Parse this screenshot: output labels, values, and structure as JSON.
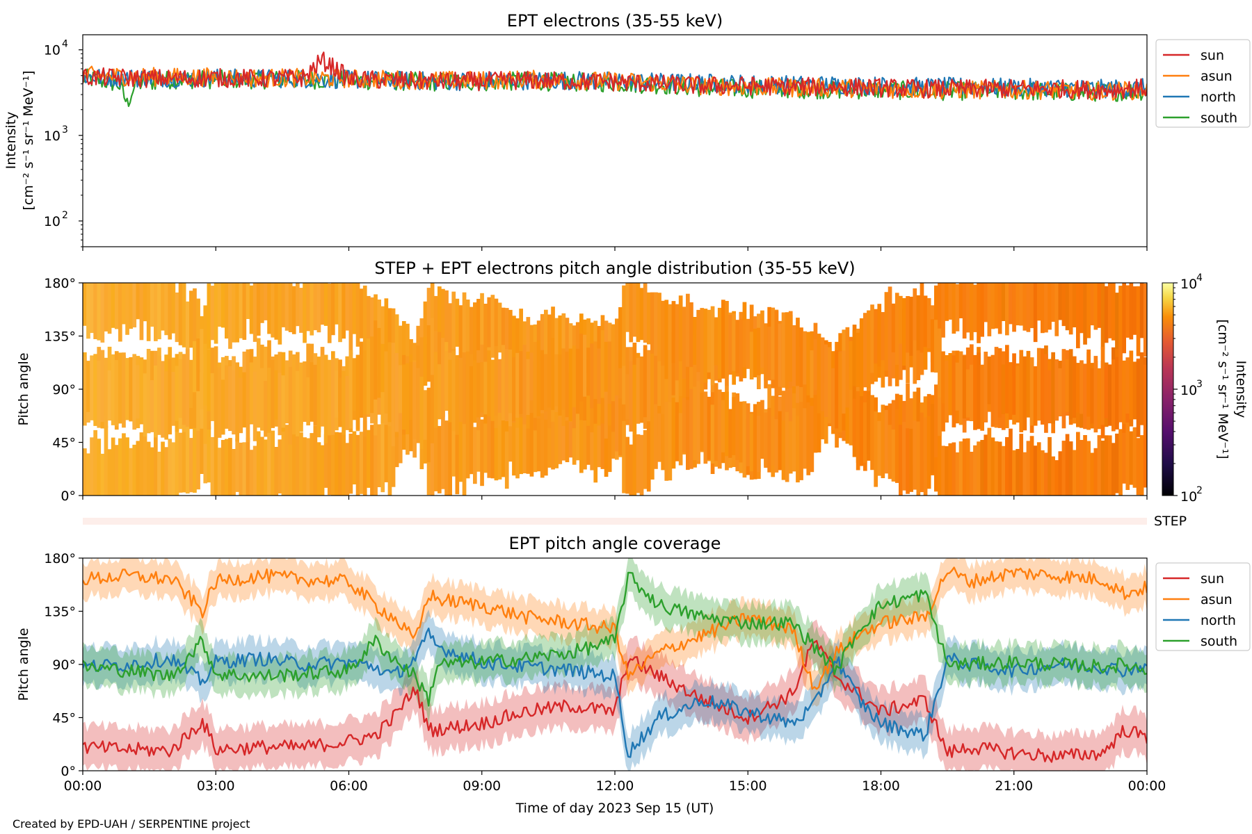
{
  "credit": "Created by EPD-UAH / SERPENTINE project",
  "xaxis": {
    "label": "Time of day 2023 Sep 15 (UT)",
    "ticks": [
      "00:00",
      "03:00",
      "06:00",
      "09:00",
      "12:00",
      "15:00",
      "18:00",
      "21:00",
      "00:00"
    ],
    "range_hours": [
      0,
      24
    ]
  },
  "chart_data": [
    {
      "type": "line",
      "title": "EPT electrons (35-55 keV)",
      "ylabel_line1": "Intensity",
      "ylabel_line2": "[cm⁻² s⁻¹ sr⁻¹ MeV⁻¹]",
      "yscale": "log",
      "ylim": [
        50,
        15000
      ],
      "ytick_values": [
        100,
        1000,
        10000
      ],
      "ytick_labels": [
        "10",
        "10",
        "10"
      ],
      "ytick_exponents": [
        "2",
        "3",
        "4"
      ],
      "legend_position": "outside-right",
      "series": [
        {
          "name": "sun",
          "color": "#d62728",
          "x": [
            0,
            1,
            2,
            3,
            4,
            5,
            5.4,
            6,
            7,
            8,
            9,
            10,
            11,
            12,
            13,
            14,
            15,
            16,
            17,
            18,
            19,
            20,
            21,
            22,
            23,
            24
          ],
          "values": [
            4800,
            4700,
            4600,
            4700,
            4600,
            4700,
            7500,
            4500,
            4400,
            4300,
            4300,
            4400,
            4300,
            4200,
            4000,
            3800,
            3800,
            3700,
            3700,
            3600,
            3500,
            3500,
            3500,
            3500,
            3400,
            3600
          ]
        },
        {
          "name": "asun",
          "color": "#ff7f0e",
          "x": [
            0,
            1,
            2,
            3,
            4,
            5,
            6,
            7,
            8,
            9,
            10,
            11,
            12,
            13,
            14,
            15,
            16,
            17,
            18,
            19,
            20,
            21,
            22,
            23,
            24
          ],
          "values": [
            5000,
            4900,
            4800,
            4800,
            4700,
            4700,
            4600,
            4500,
            4400,
            4400,
            4500,
            4400,
            4300,
            4100,
            3800,
            3700,
            3600,
            3600,
            3500,
            3400,
            3400,
            3400,
            3400,
            3300,
            3400
          ]
        },
        {
          "name": "north",
          "color": "#1f77b4",
          "x": [
            0,
            1,
            2,
            3,
            4,
            5,
            6,
            7,
            8,
            9,
            10,
            11,
            12,
            13,
            14,
            15,
            16,
            17,
            18,
            19,
            20,
            21,
            22,
            23,
            24
          ],
          "values": [
            4900,
            4700,
            4700,
            4700,
            4600,
            4600,
            4500,
            4400,
            4300,
            4300,
            4400,
            4400,
            4300,
            4200,
            4100,
            4000,
            3900,
            3900,
            3800,
            3700,
            3700,
            3600,
            3600,
            3500,
            3600
          ]
        },
        {
          "name": "south",
          "color": "#2ca02c",
          "x": [
            0,
            0.8,
            1,
            1.2,
            2,
            3,
            4,
            5,
            6,
            7,
            8,
            9,
            10,
            11,
            12,
            13,
            14,
            15,
            16,
            17,
            18,
            19,
            20,
            21,
            22,
            23,
            24
          ],
          "values": [
            4700,
            4000,
            2300,
            4000,
            4500,
            4500,
            4500,
            4500,
            4400,
            4300,
            4200,
            4200,
            4300,
            4200,
            4100,
            3900,
            3600,
            3500,
            3500,
            3400,
            3400,
            3300,
            3300,
            3300,
            3200,
            3200,
            3300
          ]
        }
      ]
    },
    {
      "type": "heatmap",
      "title": "STEP + EPT electrons pitch angle distribution (35-55 keV)",
      "ylabel": "Pitch angle",
      "ylim": [
        0,
        180
      ],
      "ytick_labels": [
        "0°",
        "45°",
        "90°",
        "135°",
        "180°"
      ],
      "ytick_values": [
        0,
        45,
        90,
        135,
        180
      ],
      "colorbar": {
        "label": "Intensity",
        "unit": "[cm⁻² s⁻¹ sr⁻¹ MeV⁻¹]",
        "scale": "log",
        "range": [
          100,
          10000
        ],
        "tick_labels": [
          "10",
          "10",
          "10"
        ],
        "tick_exponents": [
          "2",
          "3",
          "4"
        ],
        "colormap": "inferno"
      },
      "band_note": "intensity fills pitch-angle bands traced by the four telescopes; values ~4000-6000 (00-09 h), ~3000-4000 (09-24 h)"
    },
    {
      "type": "line",
      "title": "EPT pitch angle coverage",
      "ylabel": "Pitch angle",
      "ylim": [
        0,
        180
      ],
      "ytick_labels": [
        "0°",
        "45°",
        "90°",
        "135°",
        "180°"
      ],
      "ytick_values": [
        0,
        45,
        90,
        135,
        180
      ],
      "strip_label": "STEP",
      "legend_position": "outside-right",
      "series": [
        {
          "name": "sun",
          "color": "#d62728",
          "x": [
            0,
            1,
            2,
            2.7,
            3,
            4,
            5,
            6,
            6.6,
            7,
            7.5,
            7.8,
            8,
            9,
            10,
            11,
            12,
            12.3,
            13,
            14,
            15,
            16,
            16.5,
            17,
            17.5,
            18,
            19,
            19.5,
            20,
            21,
            22,
            23,
            23.5,
            24
          ],
          "values": [
            20,
            18,
            17,
            42,
            18,
            20,
            20,
            25,
            30,
            45,
            70,
            35,
            35,
            40,
            50,
            55,
            50,
            95,
            80,
            60,
            45,
            65,
            110,
            80,
            65,
            50,
            60,
            15,
            20,
            15,
            12,
            15,
            35,
            28
          ]
        },
        {
          "name": "asun",
          "color": "#ff7f0e",
          "x": [
            0,
            1,
            2,
            2.7,
            3,
            4,
            5,
            6,
            6.6,
            7,
            7.5,
            7.8,
            8,
            9,
            10,
            11,
            12,
            12.3,
            13,
            14,
            15,
            16,
            16.5,
            17,
            17.5,
            18,
            19,
            19.5,
            20,
            21,
            22,
            23,
            23.5,
            24
          ],
          "values": [
            162,
            165,
            162,
            135,
            160,
            165,
            162,
            160,
            140,
            130,
            110,
            150,
            145,
            140,
            130,
            125,
            120,
            80,
            100,
            115,
            130,
            120,
            70,
            100,
            115,
            125,
            130,
            170,
            160,
            168,
            165,
            162,
            150,
            155
          ]
        },
        {
          "name": "north",
          "color": "#1f77b4",
          "x": [
            0,
            1,
            2,
            2.7,
            3,
            4,
            5,
            6,
            6.6,
            7,
            7.5,
            7.8,
            8,
            9,
            10,
            11,
            12,
            12.3,
            13,
            14,
            15,
            16,
            16.5,
            17,
            17.5,
            18,
            19,
            19.5,
            20,
            21,
            22,
            23,
            23.5,
            24
          ],
          "values": [
            88,
            90,
            95,
            75,
            92,
            95,
            90,
            92,
            88,
            80,
            95,
            115,
            105,
            92,
            88,
            85,
            80,
            15,
            45,
            60,
            50,
            40,
            55,
            95,
            60,
            40,
            30,
            95,
            90,
            85,
            90,
            88,
            85,
            90
          ]
        },
        {
          "name": "south",
          "color": "#2ca02c",
          "x": [
            0,
            1,
            2,
            2.7,
            3,
            4,
            5,
            6,
            6.6,
            7,
            7.5,
            7.8,
            8,
            9,
            10,
            11,
            12,
            12.3,
            13,
            14,
            15,
            16,
            16.5,
            17,
            17.5,
            18,
            19,
            19.5,
            20,
            21,
            22,
            23,
            23.5,
            24
          ],
          "values": [
            88,
            85,
            80,
            110,
            82,
            80,
            82,
            85,
            110,
            95,
            80,
            60,
            90,
            92,
            95,
            100,
            110,
            165,
            140,
            130,
            125,
            125,
            105,
            85,
            120,
            140,
            150,
            90,
            90,
            92,
            90,
            88,
            90,
            85
          ]
        }
      ]
    }
  ]
}
